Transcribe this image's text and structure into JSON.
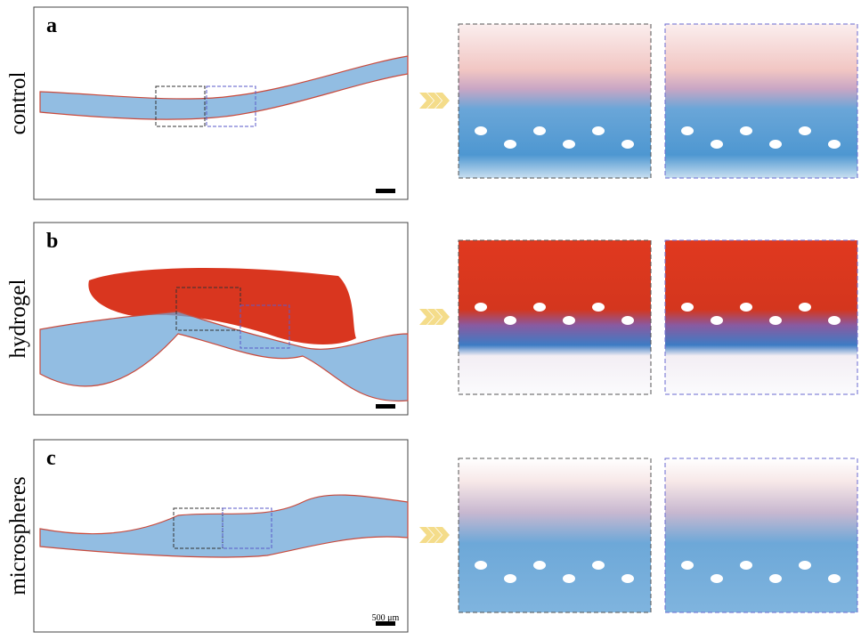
{
  "panels": [
    {
      "letter": "a",
      "label": "control"
    },
    {
      "letter": "b",
      "label": "hydrogel"
    },
    {
      "letter": "c",
      "label": "microspheres"
    }
  ],
  "scale_bar": "500 μm"
}
